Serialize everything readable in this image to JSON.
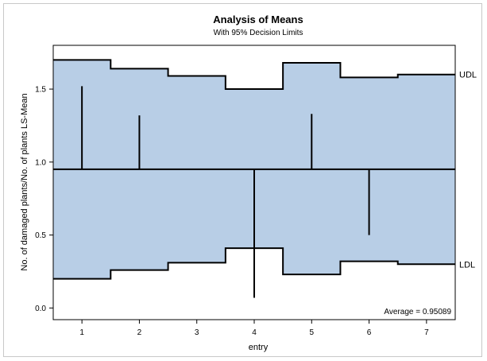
{
  "chart_data": {
    "type": "anom",
    "title": "Analysis of Means",
    "subtitle": "With 95% Decision Limits",
    "xlabel": "entry",
    "ylabel": "No. of damaged plants/No. of plants LS-Mean",
    "categories": [
      "1",
      "2",
      "3",
      "4",
      "5",
      "6",
      "7"
    ],
    "ls_means": [
      1.52,
      1.32,
      0.95,
      0.07,
      1.33,
      0.5,
      0.95
    ],
    "udl": [
      1.7,
      1.64,
      1.59,
      1.5,
      1.68,
      1.58,
      1.6
    ],
    "ldl": [
      0.2,
      0.26,
      0.31,
      0.41,
      0.23,
      0.32,
      0.3
    ],
    "average": 0.95089,
    "average_label": "Average = 0.95089",
    "udl_label": "UDL",
    "ldl_label": "LDL",
    "xlim": [
      0.5,
      7.5
    ],
    "ylim": [
      -0.08,
      1.8
    ],
    "yticks": [
      "0.0",
      "0.5",
      "1.0",
      "1.5"
    ],
    "band_color": "#b8cee6",
    "line_color": "#000000",
    "grid": false
  }
}
